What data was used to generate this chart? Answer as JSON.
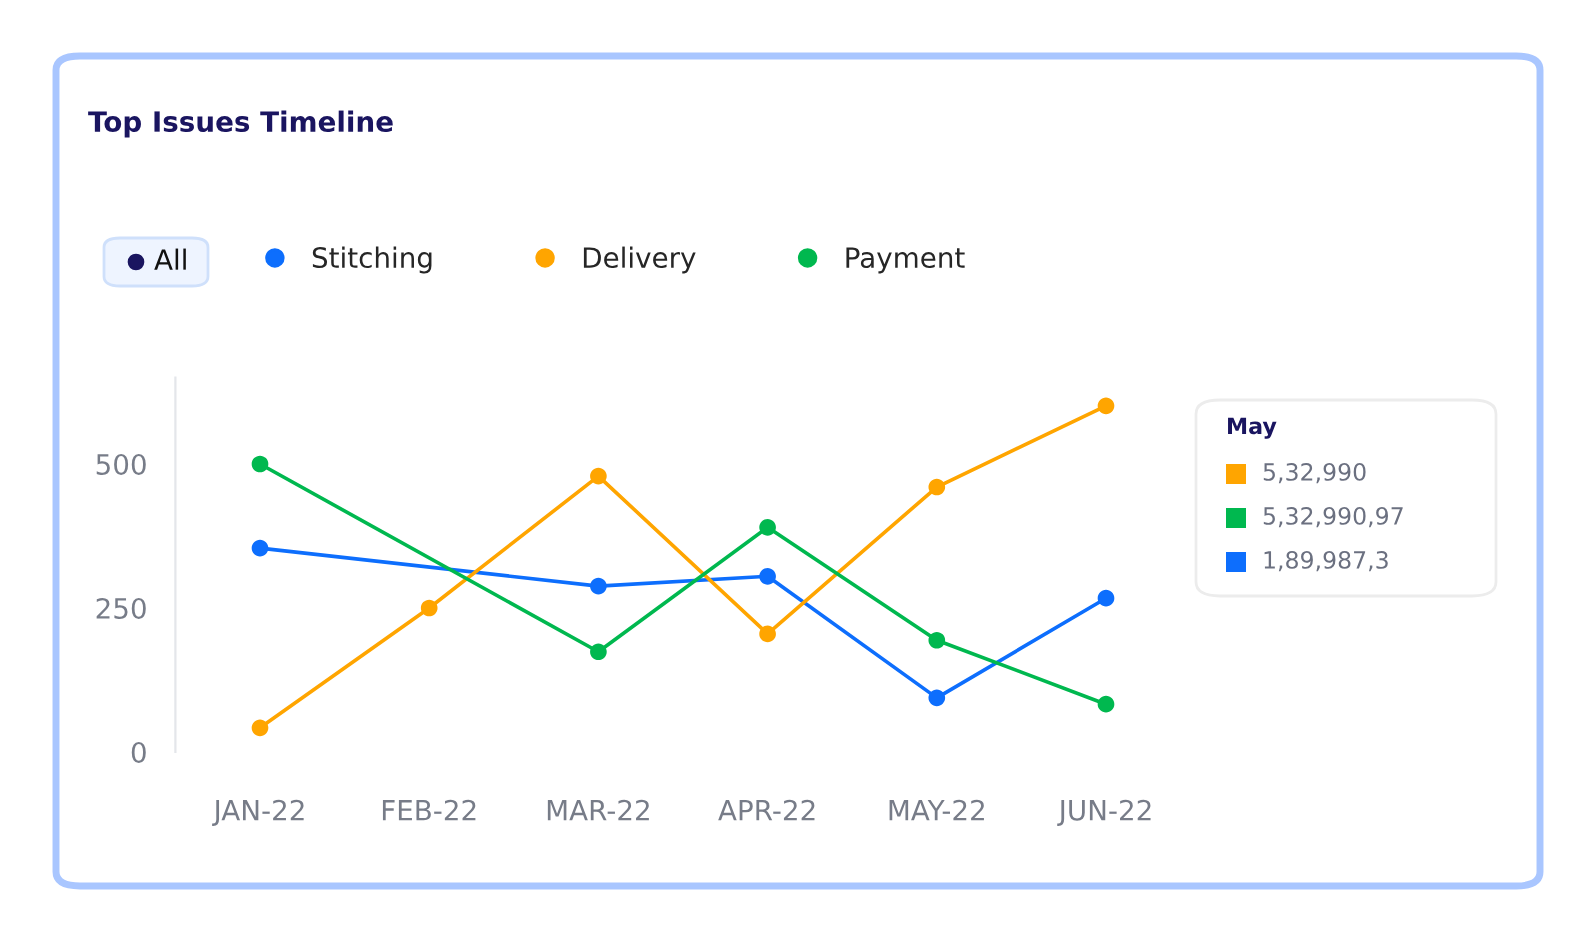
{
  "chart_data": {
    "type": "line",
    "title": "Top Issues Timeline",
    "categories": [
      "JAN-22",
      "FEB-22",
      "MAR-22",
      "APR-22",
      "MAY-22",
      "JUN-22"
    ],
    "series": [
      {
        "name": "Stitching",
        "color": "#0d6efd",
        "values": [
          354,
          null,
          288,
          305,
          94,
          267
        ]
      },
      {
        "name": "Delivery",
        "color": "#ffa500",
        "values": [
          42,
          250,
          479,
          205,
          460,
          601
        ]
      },
      {
        "name": "Payment",
        "color": "#00b84f",
        "values": [
          500,
          null,
          174,
          390,
          194,
          83
        ]
      }
    ],
    "ylim": [
      0,
      650
    ],
    "yticks": [
      0,
      250,
      500
    ],
    "grid": false,
    "legend": "top left",
    "marker": "circle",
    "line_style": "solid",
    "annotations": [
      "All",
      "May",
      "5,32,990",
      "5,32,990,97",
      "1,89,987,3"
    ]
  }
}
